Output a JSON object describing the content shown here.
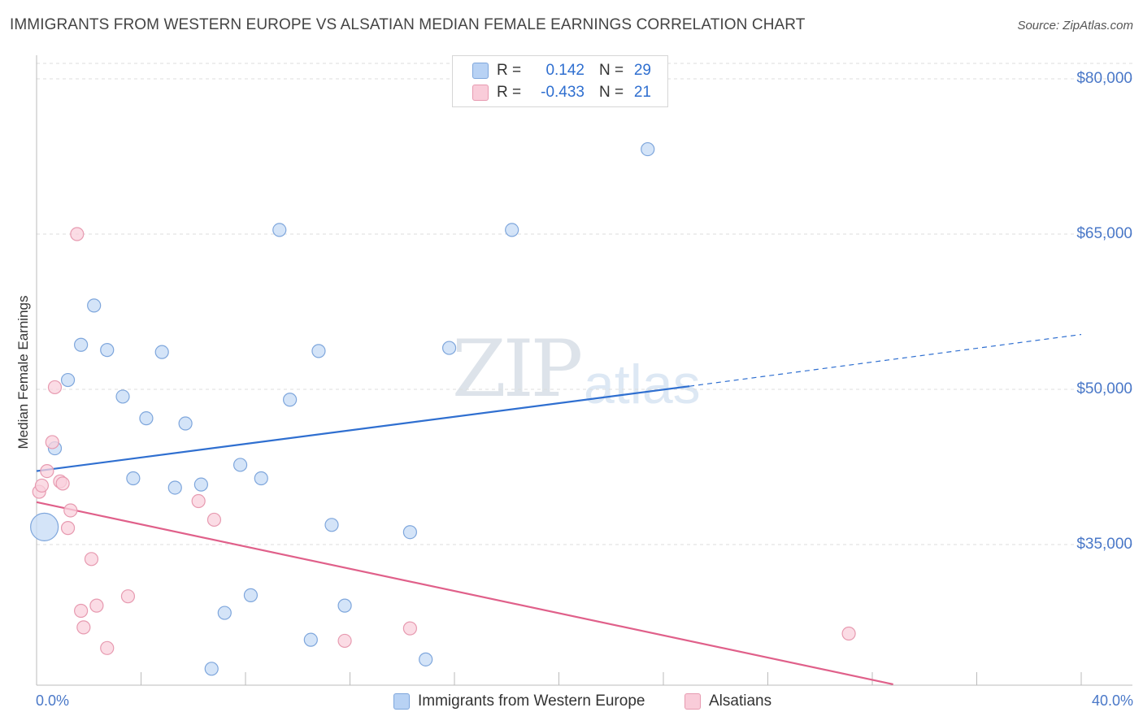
{
  "chart_data": {
    "type": "scatter",
    "title": "IMMIGRANTS FROM WESTERN EUROPE VS ALSATIAN MEDIAN FEMALE EARNINGS CORRELATION CHART",
    "source": "Source: ZipAtlas.com",
    "ylabel": "Median Female Earnings",
    "xlim": [
      0,
      40
    ],
    "ylim": [
      21500,
      83000
    ],
    "y_ticks": [
      {
        "value": 80000,
        "label": "$80,000"
      },
      {
        "value": 65000,
        "label": "$65,000"
      },
      {
        "value": 50000,
        "label": "$50,000"
      },
      {
        "value": 35000,
        "label": "$35,000"
      }
    ],
    "x_tick_labels": {
      "min": "0.0%",
      "max": "40.0%"
    },
    "watermark": {
      "zip": "ZIP",
      "atlas": "atlas"
    },
    "legend": {
      "r_label": "R =",
      "n_label": "N =",
      "entries": [
        {
          "name": "Immigrants from Western Europe",
          "r": "0.142",
          "n": "29",
          "color": "#a8c8f0"
        },
        {
          "name": "Alsatians",
          "r": "-0.433",
          "n": "21",
          "color": "#f4b8c8"
        }
      ]
    },
    "series": [
      {
        "name": "Immigrants from Western Europe",
        "fill": "#c6dbf5",
        "stroke": "#7ea6dc",
        "line_color": "#2f6fd0",
        "trend": {
          "x0": 0,
          "y0": 42100,
          "x1": 25,
          "y1": 50300,
          "x_dash_end": 40,
          "y_dash_end": 55300
        },
        "points": [
          {
            "x": 0.3,
            "y": 36700,
            "big": true
          },
          {
            "x": 0.7,
            "y": 44300
          },
          {
            "x": 1.2,
            "y": 50900
          },
          {
            "x": 1.7,
            "y": 54300
          },
          {
            "x": 2.2,
            "y": 58100
          },
          {
            "x": 2.7,
            "y": 53800
          },
          {
            "x": 3.3,
            "y": 49300
          },
          {
            "x": 3.7,
            "y": 41400
          },
          {
            "x": 4.2,
            "y": 47200
          },
          {
            "x": 4.8,
            "y": 53600
          },
          {
            "x": 5.3,
            "y": 40500
          },
          {
            "x": 5.7,
            "y": 46700
          },
          {
            "x": 6.3,
            "y": 40800
          },
          {
            "x": 6.7,
            "y": 23000
          },
          {
            "x": 7.2,
            "y": 28400
          },
          {
            "x": 7.8,
            "y": 42700
          },
          {
            "x": 8.2,
            "y": 30100
          },
          {
            "x": 8.6,
            "y": 41400
          },
          {
            "x": 9.3,
            "y": 65400
          },
          {
            "x": 9.7,
            "y": 49000
          },
          {
            "x": 10.5,
            "y": 25800
          },
          {
            "x": 10.8,
            "y": 53700
          },
          {
            "x": 11.3,
            "y": 36900
          },
          {
            "x": 11.8,
            "y": 29100
          },
          {
            "x": 14.3,
            "y": 36200
          },
          {
            "x": 14.9,
            "y": 23900
          },
          {
            "x": 15.8,
            "y": 54000
          },
          {
            "x": 18.2,
            "y": 65400
          },
          {
            "x": 23.4,
            "y": 73200
          }
        ]
      },
      {
        "name": "Alsatians",
        "fill": "#f9d0dc",
        "stroke": "#e79ab0",
        "line_color": "#e0608a",
        "trend": {
          "x0": 0,
          "y0": 39100,
          "x1": 32.8,
          "y1": 21500
        },
        "points": [
          {
            "x": 0.1,
            "y": 40100
          },
          {
            "x": 0.2,
            "y": 40700
          },
          {
            "x": 0.4,
            "y": 42100
          },
          {
            "x": 0.6,
            "y": 44900
          },
          {
            "x": 0.7,
            "y": 50200
          },
          {
            "x": 0.9,
            "y": 41100
          },
          {
            "x": 1.0,
            "y": 40900
          },
          {
            "x": 1.2,
            "y": 36600
          },
          {
            "x": 1.3,
            "y": 38300
          },
          {
            "x": 1.55,
            "y": 65000
          },
          {
            "x": 1.7,
            "y": 28600
          },
          {
            "x": 1.8,
            "y": 27000
          },
          {
            "x": 2.1,
            "y": 33600
          },
          {
            "x": 2.3,
            "y": 29100
          },
          {
            "x": 2.7,
            "y": 25000
          },
          {
            "x": 3.5,
            "y": 30000
          },
          {
            "x": 6.2,
            "y": 39200
          },
          {
            "x": 6.8,
            "y": 37400
          },
          {
            "x": 11.8,
            "y": 25700
          },
          {
            "x": 14.3,
            "y": 26900
          },
          {
            "x": 31.1,
            "y": 26400
          }
        ]
      }
    ]
  }
}
